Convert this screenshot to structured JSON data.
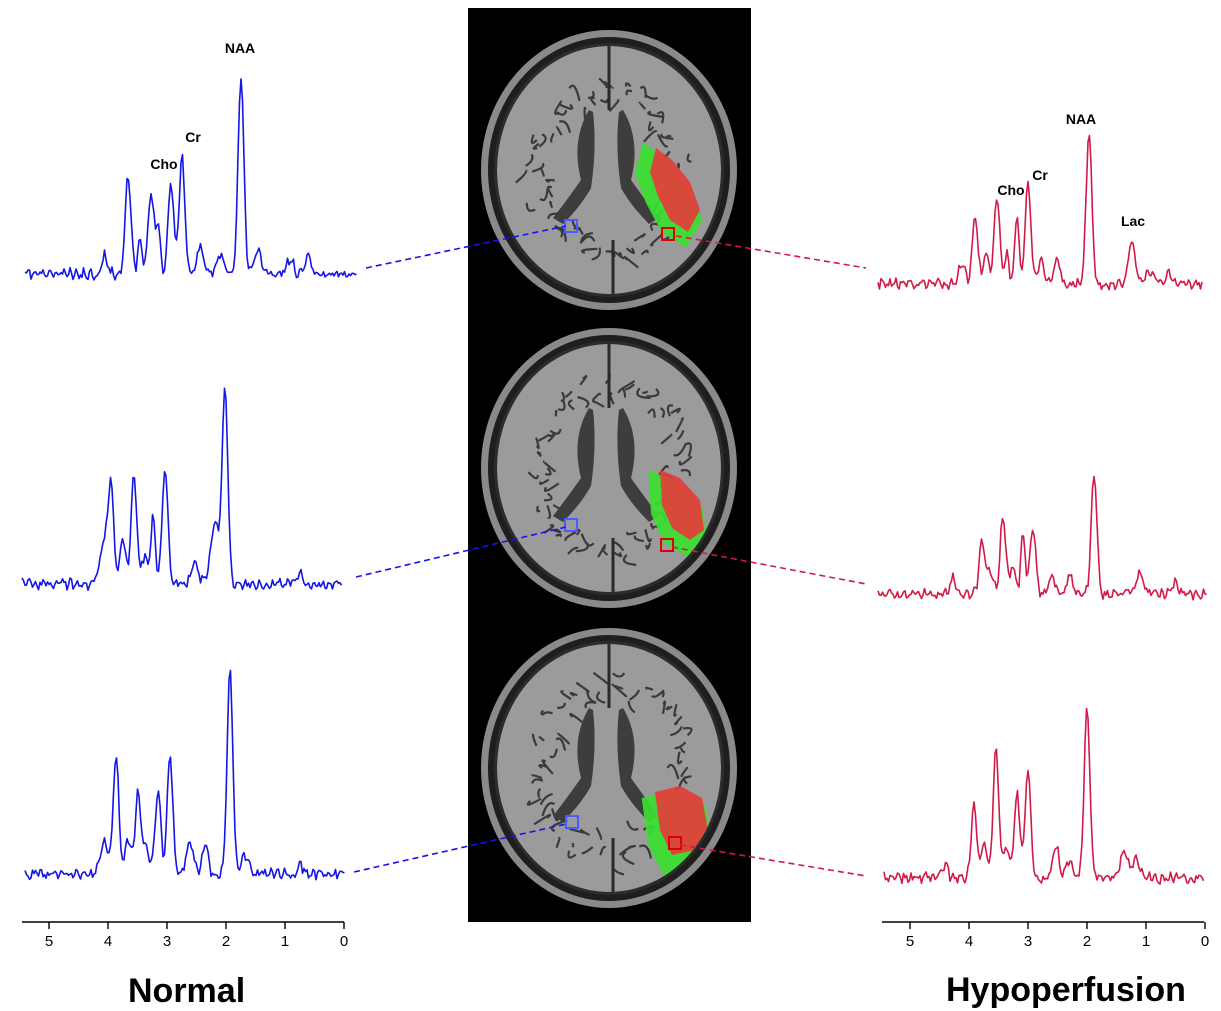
{
  "colors": {
    "normal": "#1515e6",
    "hypoperfusion": "#d21a48",
    "lesion_core": "#e83a3a",
    "lesion_rim": "#39e030",
    "panel_bg": "#000000"
  },
  "normal": {
    "title": "Normal",
    "peak_labels": {
      "naa": "NAA",
      "cr": "Cr",
      "cho": "Cho"
    },
    "ticks": [
      "5",
      "4",
      "3",
      "2",
      "1",
      "0"
    ]
  },
  "hypoperfusion": {
    "title": "Hypoperfusion",
    "peak_labels": {
      "naa": "NAA",
      "cr": "Cr",
      "cho": "Cho",
      "lac": "Lac"
    },
    "ticks": [
      "5",
      "4",
      "3",
      "2",
      "1",
      "0"
    ]
  }
}
